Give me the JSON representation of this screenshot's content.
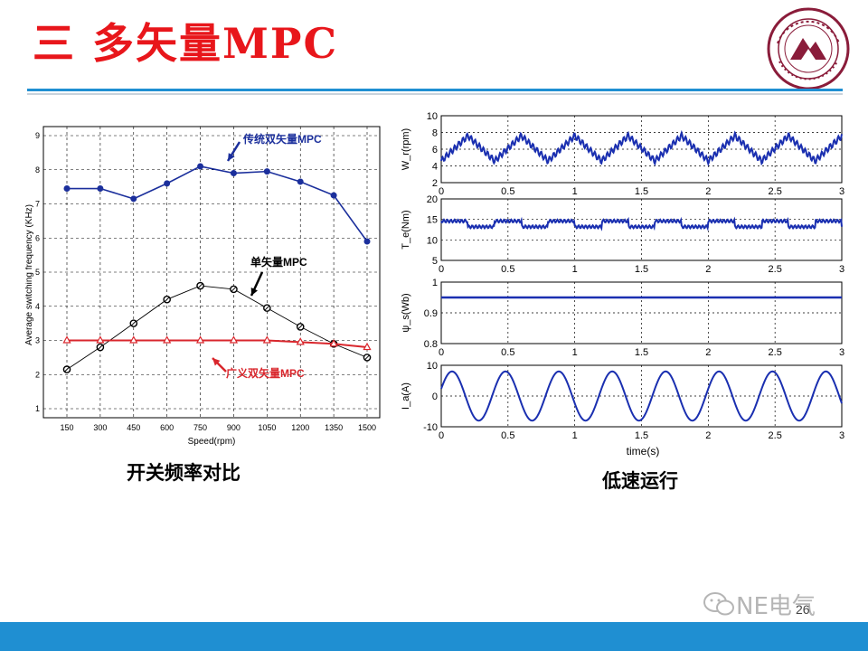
{
  "slide": {
    "title": "三 多矢量MPC",
    "page_number": "26",
    "watermark": "NE电气"
  },
  "captions": {
    "left": "开关频率对比",
    "right": "低速运行"
  },
  "colors": {
    "title": "#e8161b",
    "accent_blue": "#1f8fd2",
    "series_traditional": "#1b2f9c",
    "series_single": "#000000",
    "series_generalized": "#d9262c",
    "trace_blue": "#1a2fb0"
  },
  "chart_data": [
    {
      "type": "line",
      "xlabel": "Speed(rpm)",
      "ylabel": "Average switching frequency (KHz)",
      "x": [
        150,
        300,
        450,
        600,
        750,
        900,
        1050,
        1200,
        1350,
        1500
      ],
      "ylim": [
        1,
        9
      ],
      "yticks": [
        "1",
        "2",
        "3",
        "4",
        "5",
        "6",
        "7",
        "8",
        "9"
      ],
      "grid": true,
      "series": [
        {
          "name": "传统双矢量MPC",
          "values": [
            7.45,
            7.45,
            7.15,
            7.6,
            8.1,
            7.9,
            7.95,
            7.65,
            7.25,
            5.9
          ]
        },
        {
          "name": "单矢量MPC",
          "values": [
            2.15,
            2.8,
            3.5,
            4.2,
            4.6,
            4.5,
            3.95,
            3.4,
            2.9,
            2.5
          ]
        },
        {
          "name": "广义双矢量MPC",
          "values": [
            3.0,
            3.0,
            3.0,
            3.0,
            3.0,
            3.0,
            3.0,
            2.95,
            2.9,
            2.8
          ]
        }
      ]
    },
    {
      "type": "line",
      "xlabel": "time(s)",
      "xlim": [
        0,
        3
      ],
      "xticks": [
        "0",
        "0.5",
        "1",
        "1.5",
        "2",
        "2.5",
        "3"
      ],
      "panels": [
        {
          "ylabel": "W_r(rpm)",
          "ylim": [
            2,
            10
          ],
          "yticks": [
            "2",
            "4",
            "6",
            "8",
            "10"
          ],
          "signal": "triangle-like speed ripple between 4.5 and 7.5, period 0.4 s"
        },
        {
          "ylabel": "T_e(Nm)",
          "ylim": [
            5,
            20
          ],
          "yticks": [
            "5",
            "10",
            "15",
            "20"
          ],
          "signal": "square-ish torque between 13 and 15"
        },
        {
          "ylabel": "ψ_s(Wb)",
          "ylim": [
            0.8,
            1
          ],
          "yticks": [
            "0.8",
            "0.9",
            "1"
          ],
          "signal": "constant flux 0.95"
        },
        {
          "ylabel": "I_a(A)",
          "ylim": [
            -10,
            10
          ],
          "yticks": [
            "-10",
            "0",
            "10"
          ],
          "signal": "sinusoidal current amplitude 8, period 0.4 s"
        }
      ]
    }
  ]
}
